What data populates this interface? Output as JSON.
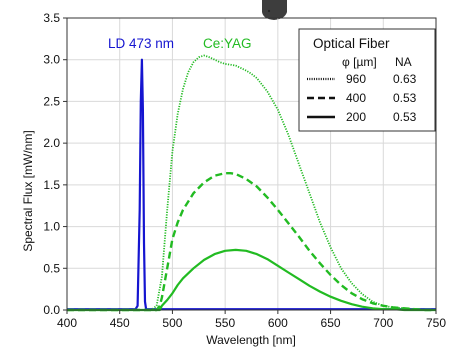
{
  "chart_data": {
    "type": "line",
    "xlabel": "Wavelength [nm]",
    "ylabel": "Spectral Flux [mW/nm]",
    "xlim": [
      400,
      750
    ],
    "ylim": [
      0,
      3.5
    ],
    "xticks": [
      "400",
      "450",
      "500",
      "550",
      "600",
      "650",
      "700",
      "750"
    ],
    "yticks": [
      "0.0",
      "0.5",
      "1.0",
      "1.5",
      "2.0",
      "2.5",
      "3.0",
      "3.5"
    ],
    "grid": true,
    "annotations": {
      "laser": "LD 473 nm",
      "phosphor": "Ce:YAG"
    },
    "legend": {
      "placement": "top-right",
      "title": "Optical Fiber",
      "col_phi": "φ [µm]",
      "col_na": "NA",
      "entries": [
        {
          "phi": "960",
          "na": "0.63",
          "style": "dotted"
        },
        {
          "phi": "400",
          "na": "0.53",
          "style": "dashed"
        },
        {
          "phi": "200",
          "na": "0.53",
          "style": "solid"
        }
      ]
    },
    "colors": {
      "laser": "#1515d0",
      "phosphor": "#22bb22"
    },
    "series": [
      {
        "style": "solid",
        "color": "#1515d0",
        "x": [
          400,
          465,
          467,
          469,
          470,
          471,
          472,
          473,
          474,
          475,
          750
        ],
        "y": [
          0.01,
          0.01,
          0.05,
          1.2,
          2.5,
          3.0,
          2.4,
          0.8,
          0.1,
          0.01,
          0.01
        ]
      },
      {
        "style": "dotted",
        "color": "#22bb22",
        "x": [
          400,
          480,
          485,
          490,
          495,
          500,
          505,
          510,
          515,
          520,
          525,
          530,
          535,
          540,
          545,
          550,
          555,
          560,
          565,
          570,
          575,
          580,
          590,
          600,
          610,
          620,
          630,
          640,
          650,
          660,
          670,
          680,
          690,
          700,
          710,
          720,
          730,
          740,
          750
        ],
        "y": [
          0.0,
          0.0,
          0.05,
          0.4,
          1.2,
          1.9,
          2.35,
          2.65,
          2.85,
          2.97,
          3.03,
          3.05,
          3.03,
          3.0,
          2.97,
          2.95,
          2.94,
          2.93,
          2.9,
          2.87,
          2.83,
          2.78,
          2.62,
          2.4,
          2.1,
          1.75,
          1.4,
          1.05,
          0.75,
          0.5,
          0.32,
          0.19,
          0.1,
          0.05,
          0.03,
          0.02,
          0.01,
          0.0,
          0.0
        ]
      },
      {
        "style": "dashed",
        "color": "#22bb22",
        "x": [
          400,
          485,
          488,
          490,
          495,
          500,
          505,
          510,
          520,
          530,
          540,
          550,
          555,
          560,
          570,
          580,
          590,
          600,
          610,
          620,
          630,
          640,
          650,
          660,
          670,
          680,
          690,
          700,
          710,
          720,
          730,
          740,
          750
        ],
        "y": [
          0.0,
          0.0,
          0.05,
          0.15,
          0.5,
          0.85,
          1.05,
          1.2,
          1.4,
          1.53,
          1.61,
          1.64,
          1.64,
          1.63,
          1.57,
          1.48,
          1.35,
          1.2,
          1.04,
          0.88,
          0.71,
          0.56,
          0.42,
          0.3,
          0.2,
          0.13,
          0.08,
          0.05,
          0.03,
          0.02,
          0.01,
          0.0,
          0.0
        ]
      },
      {
        "style": "solid",
        "color": "#22bb22",
        "x": [
          400,
          488,
          490,
          495,
          500,
          505,
          510,
          520,
          530,
          540,
          550,
          560,
          570,
          580,
          590,
          600,
          610,
          620,
          630,
          640,
          650,
          660,
          670,
          680,
          690,
          700,
          710,
          720,
          730,
          740,
          750
        ],
        "y": [
          0.0,
          0.0,
          0.05,
          0.12,
          0.2,
          0.3,
          0.38,
          0.5,
          0.6,
          0.67,
          0.71,
          0.72,
          0.71,
          0.67,
          0.61,
          0.53,
          0.45,
          0.37,
          0.29,
          0.22,
          0.16,
          0.11,
          0.07,
          0.04,
          0.02,
          0.01,
          0.01,
          0.0,
          0.0,
          0.0,
          0.0
        ]
      }
    ]
  }
}
